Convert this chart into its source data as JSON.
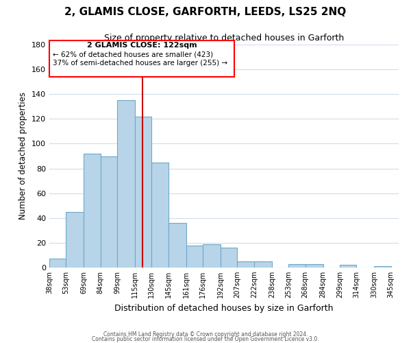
{
  "title": "2, GLAMIS CLOSE, GARFORTH, LEEDS, LS25 2NQ",
  "subtitle": "Size of property relative to detached houses in Garforth",
  "xlabel": "Distribution of detached houses by size in Garforth",
  "ylabel": "Number of detached properties",
  "bar_left_edges": [
    38,
    53,
    69,
    84,
    99,
    115,
    130,
    145,
    161,
    176,
    192,
    207,
    222,
    238,
    253,
    268,
    284,
    299,
    314,
    330
  ],
  "bar_heights": [
    7,
    45,
    92,
    90,
    135,
    122,
    85,
    36,
    18,
    19,
    16,
    5,
    5,
    0,
    3,
    3,
    0,
    2,
    0,
    1
  ],
  "bar_widths": [
    15,
    16,
    15,
    15,
    16,
    15,
    15,
    16,
    15,
    16,
    15,
    15,
    16,
    15,
    15,
    16,
    15,
    15,
    16,
    15
  ],
  "bar_color": "#b8d4e8",
  "bar_edge_color": "#6fa8c8",
  "vline_x": 122,
  "vline_color": "#cc0000",
  "ylim": [
    0,
    180
  ],
  "yticks": [
    0,
    20,
    40,
    60,
    80,
    100,
    120,
    140,
    160,
    180
  ],
  "xtick_labels": [
    "38sqm",
    "53sqm",
    "69sqm",
    "84sqm",
    "99sqm",
    "115sqm",
    "130sqm",
    "145sqm",
    "161sqm",
    "176sqm",
    "192sqm",
    "207sqm",
    "222sqm",
    "238sqm",
    "253sqm",
    "268sqm",
    "284sqm",
    "299sqm",
    "314sqm",
    "330sqm",
    "345sqm"
  ],
  "xtick_positions": [
    38,
    53,
    69,
    84,
    99,
    115,
    130,
    145,
    161,
    176,
    192,
    207,
    222,
    238,
    253,
    268,
    284,
    299,
    314,
    330,
    345
  ],
  "xlim_left": 38,
  "xlim_right": 352,
  "annotation_title": "2 GLAMIS CLOSE: 122sqm",
  "annotation_line1": "← 62% of detached houses are smaller (423)",
  "annotation_line2": "37% of semi-detached houses are larger (255) →",
  "footer1": "Contains HM Land Registry data © Crown copyright and database right 2024.",
  "footer2": "Contains public sector information licensed under the Open Government Licence v3.0.",
  "background_color": "#ffffff",
  "grid_color": "#d0dde8"
}
